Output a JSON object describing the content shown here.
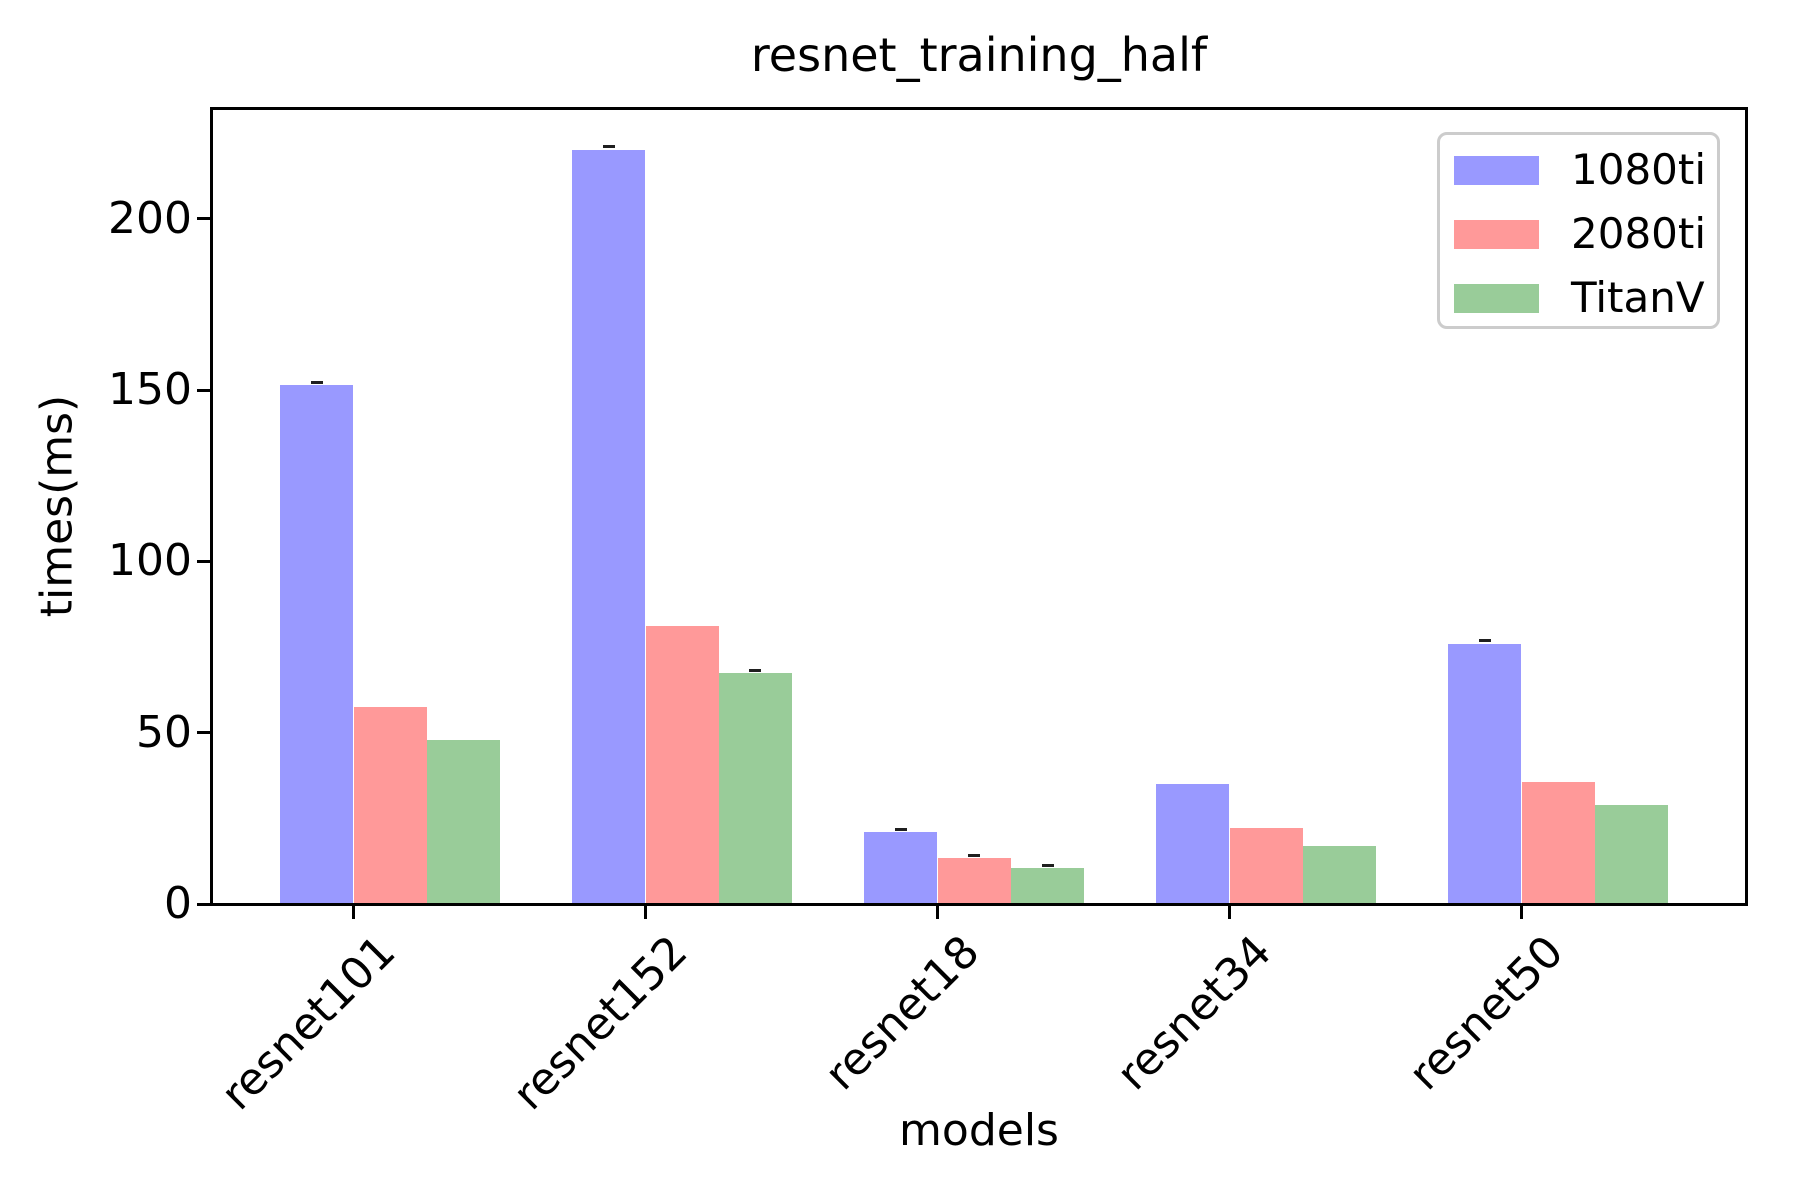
{
  "title": "resnet_training_half",
  "xlabel": "models",
  "ylabel": "times(ms)",
  "legend": {
    "position": "upper right",
    "entries": [
      {
        "label": "1080ti",
        "color": "#9999ff"
      },
      {
        "label": "2080ti",
        "color": "#ff9999"
      },
      {
        "label": "TitanV",
        "color": "#99cc99"
      }
    ]
  },
  "axes": {
    "ytick_labels": [
      "0",
      "50",
      "100",
      "150",
      "200"
    ],
    "spine_color": "#000000",
    "background": "#ffffff"
  },
  "chart_data": {
    "type": "bar",
    "title": "resnet_training_half",
    "xlabel": "models",
    "ylabel": "times(ms)",
    "categories": [
      "resnet101",
      "resnet152",
      "resnet18",
      "resnet34",
      "resnet50"
    ],
    "series": [
      {
        "name": "1080ti",
        "color": "#9999ff",
        "values": [
          151.5,
          220,
          21,
          35,
          76
        ],
        "yerr": [
          0.8,
          1.2,
          0.8,
          0,
          0.8
        ]
      },
      {
        "name": "2080ti",
        "color": "#ff9999",
        "values": [
          57.5,
          81,
          13.3,
          22.3,
          35.5
        ],
        "yerr": [
          0,
          0,
          0.8,
          0,
          0
        ]
      },
      {
        "name": "TitanV",
        "color": "#99cc99",
        "values": [
          48,
          67.5,
          10.4,
          16.8,
          29
        ],
        "yerr": [
          0,
          0.8,
          0.8,
          0,
          0
        ]
      }
    ],
    "ylim": [
      0,
      232
    ],
    "yticks": [
      0,
      50,
      100,
      150,
      200
    ],
    "grid": false,
    "legend_position": "upper right"
  }
}
